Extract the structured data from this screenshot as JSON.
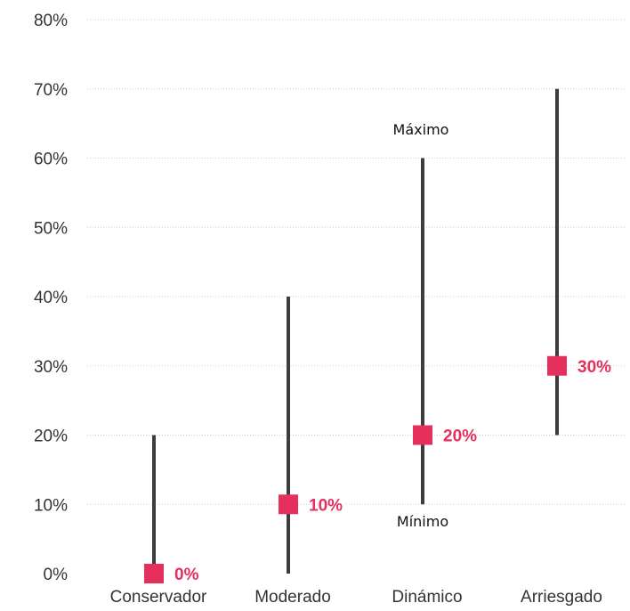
{
  "chart_data": {
    "type": "range",
    "categories": [
      "Conservador",
      "Moderado",
      "Dinámico",
      "Arriesgado"
    ],
    "series": [
      {
        "name": "Mínimo",
        "values": [
          0,
          0,
          10,
          20
        ]
      },
      {
        "name": "Máximo",
        "values": [
          20,
          40,
          60,
          70
        ]
      },
      {
        "values": [
          0,
          10,
          20,
          30
        ]
      }
    ],
    "point_labels": [
      "0%",
      "10%",
      "20%",
      "30%"
    ],
    "y_ticks": [
      "0%",
      "10%",
      "20%",
      "30%",
      "40%",
      "50%",
      "60%",
      "70%",
      "80%"
    ],
    "ylim": [
      0,
      80
    ],
    "annotations": {
      "max_label": "Máximo",
      "min_label": "Mínimo"
    },
    "grid": true,
    "colors": {
      "range_line": "#3d3d3d",
      "marker": "#e5305e",
      "grid": "#cfcfcf"
    }
  }
}
